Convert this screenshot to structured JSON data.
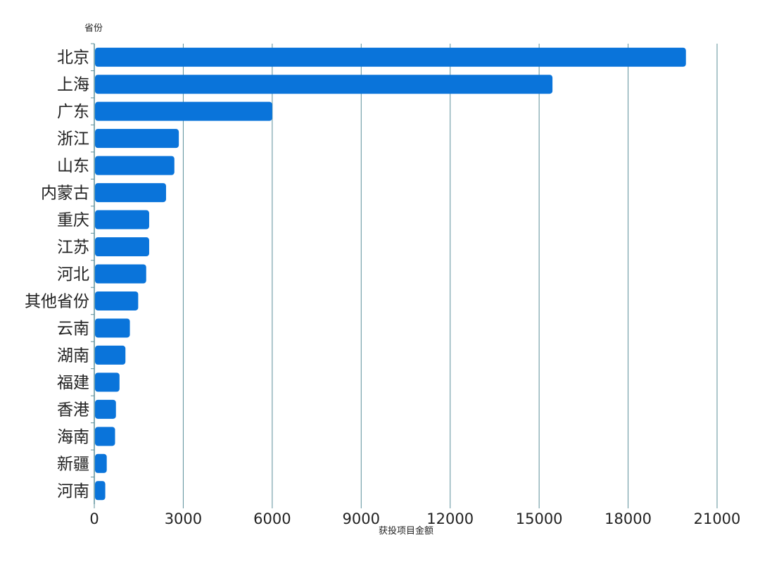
{
  "chart_data": {
    "type": "bar",
    "orientation": "horizontal",
    "title": "",
    "xlabel": "获投项目金额",
    "ylabel": "省份",
    "categories": [
      "北京",
      "上海",
      "广东",
      "浙江",
      "山东",
      "内蒙古",
      "重庆",
      "江苏",
      "河北",
      "其他省份",
      "云南",
      "湖南",
      "福建",
      "香港",
      "海南",
      "新疆",
      "河南"
    ],
    "values": [
      19950,
      15450,
      6000,
      2850,
      2700,
      2420,
      1850,
      1850,
      1750,
      1480,
      1200,
      1050,
      850,
      730,
      700,
      420,
      370
    ],
    "xlim": [
      0,
      21000
    ],
    "xticks": [
      0,
      3000,
      6000,
      9000,
      12000,
      15000,
      18000,
      21000
    ],
    "grid": true,
    "legend": "none",
    "colors": {
      "bar": "#0a74da",
      "grid": "#5b8f9a",
      "text": "#222222"
    }
  }
}
